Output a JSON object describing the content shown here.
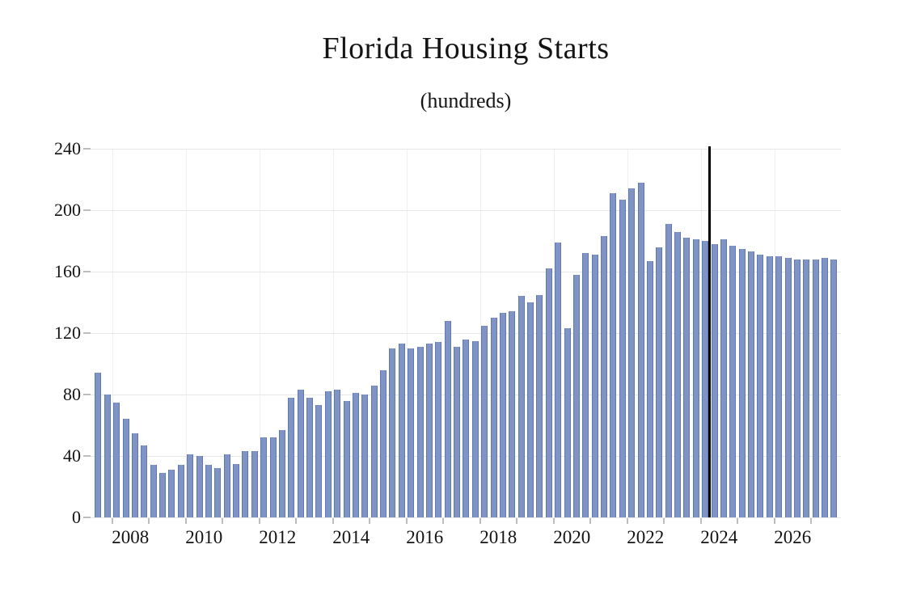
{
  "chart_data": {
    "type": "bar",
    "title": "Florida Housing Starts",
    "subtitle": "(hundreds)",
    "ylabel": "",
    "xlabel": "",
    "ylim": [
      0,
      240
    ],
    "y_tick_labels": [
      "0",
      "40",
      "80",
      "120",
      "160",
      "200",
      "240"
    ],
    "y_tick_values": [
      0,
      40,
      80,
      120,
      160,
      200,
      240
    ],
    "x_axis_labels": [
      "2008",
      "2010",
      "2012",
      "2014",
      "2016",
      "2018",
      "2020",
      "2022",
      "2024",
      "2026"
    ],
    "x_tick_years": [
      2008,
      2009,
      2010,
      2011,
      2012,
      2013,
      2014,
      2015,
      2016,
      2017,
      2018,
      2019,
      2020,
      2021,
      2022,
      2023,
      2024,
      2025,
      2026,
      2027
    ],
    "grid": true,
    "legend": false,
    "bar_color": "#7f94c4",
    "bar_edge_color": "#5f78ae",
    "forecast_divider_color": "#000000",
    "forecast_divider_after": "2024 Q1",
    "forecast_start_index": 67,
    "series": [
      {
        "name": "Florida housing starts (hundreds, quarterly)",
        "x": [
          "2007 Q3",
          "2007 Q4",
          "2008 Q1",
          "2008 Q2",
          "2008 Q3",
          "2008 Q4",
          "2009 Q1",
          "2009 Q2",
          "2009 Q3",
          "2009 Q4",
          "2010 Q1",
          "2010 Q2",
          "2010 Q3",
          "2010 Q4",
          "2011 Q1",
          "2011 Q2",
          "2011 Q3",
          "2011 Q4",
          "2012 Q1",
          "2012 Q2",
          "2012 Q3",
          "2012 Q4",
          "2013 Q1",
          "2013 Q2",
          "2013 Q3",
          "2013 Q4",
          "2014 Q1",
          "2014 Q2",
          "2014 Q3",
          "2014 Q4",
          "2015 Q1",
          "2015 Q2",
          "2015 Q3",
          "2015 Q4",
          "2016 Q1",
          "2016 Q2",
          "2016 Q3",
          "2016 Q4",
          "2017 Q1",
          "2017 Q2",
          "2017 Q3",
          "2017 Q4",
          "2018 Q1",
          "2018 Q2",
          "2018 Q3",
          "2018 Q4",
          "2019 Q1",
          "2019 Q2",
          "2019 Q3",
          "2019 Q4",
          "2020 Q1",
          "2020 Q2",
          "2020 Q3",
          "2020 Q4",
          "2021 Q1",
          "2021 Q2",
          "2021 Q3",
          "2021 Q4",
          "2022 Q1",
          "2022 Q2",
          "2022 Q3",
          "2022 Q4",
          "2023 Q1",
          "2023 Q2",
          "2023 Q3",
          "2023 Q4",
          "2024 Q1",
          "2024 Q2",
          "2024 Q3",
          "2024 Q4",
          "2025 Q1",
          "2025 Q2",
          "2025 Q3",
          "2025 Q4",
          "2026 Q1",
          "2026 Q2",
          "2026 Q3",
          "2026 Q4",
          "2027 Q1",
          "2027 Q2",
          "2027 Q3"
        ],
        "values": [
          94,
          80,
          75,
          64,
          55,
          47,
          34,
          29,
          31,
          34,
          41,
          40,
          34,
          32,
          41,
          35,
          43,
          43,
          52,
          52,
          57,
          78,
          83,
          78,
          73,
          82,
          83,
          76,
          81,
          80,
          86,
          96,
          110,
          113,
          110,
          111,
          113,
          114,
          128,
          111,
          116,
          115,
          125,
          130,
          133,
          134,
          144,
          140,
          145,
          162,
          179,
          123,
          158,
          172,
          171,
          183,
          211,
          207,
          214,
          218,
          167,
          176,
          191,
          186,
          182,
          181,
          180,
          178,
          181,
          177,
          175,
          173,
          171,
          170,
          170,
          169,
          168,
          168,
          168,
          169,
          168
        ]
      }
    ]
  }
}
